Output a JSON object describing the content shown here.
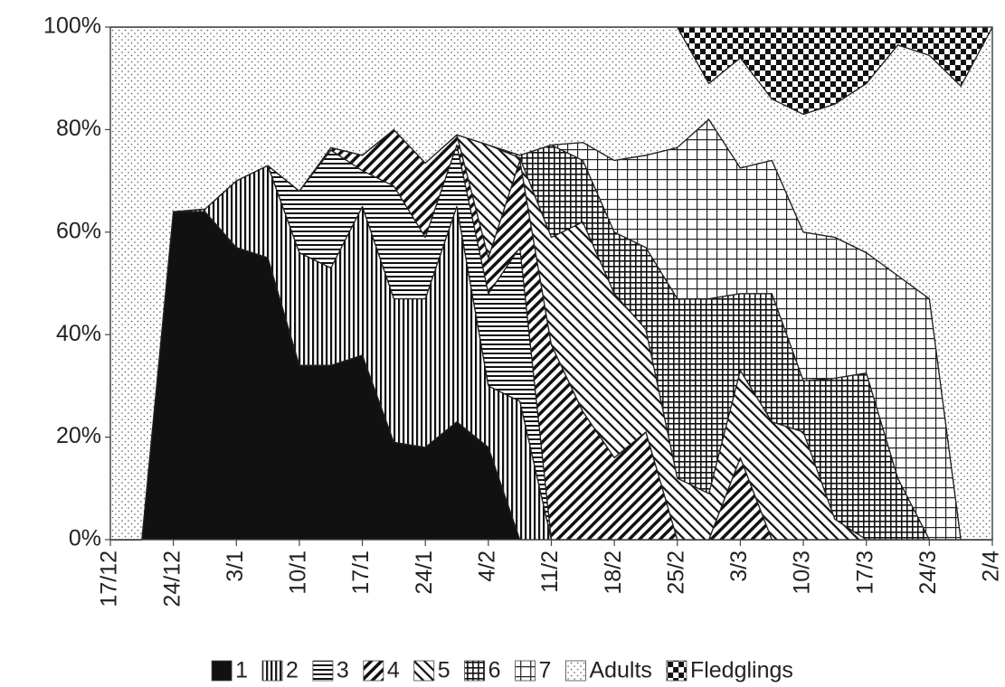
{
  "chart_data": {
    "type": "stacked-area",
    "categories": [
      "17/12",
      null,
      "24/12",
      null,
      "3/1",
      null,
      "10/1",
      null,
      "17/1",
      null,
      "24/1",
      null,
      "4/2",
      null,
      "11/2",
      null,
      "18/2",
      null,
      "25/2",
      null,
      "3/3",
      null,
      "10/3",
      null,
      "17/3",
      null,
      "24/3",
      null,
      "2/4"
    ],
    "ylim": [
      0,
      100
    ],
    "yticks": [
      {
        "value": 0,
        "label": "0%"
      },
      {
        "value": 20,
        "label": "20%"
      },
      {
        "value": 40,
        "label": "40%"
      },
      {
        "value": 60,
        "label": "60%"
      },
      {
        "value": 80,
        "label": "80%"
      },
      {
        "value": 100,
        "label": "100%"
      }
    ],
    "legend": "bottom",
    "series": [
      {
        "name": "1",
        "pattern": "solid",
        "values": [
          0,
          0,
          64,
          64,
          57,
          55,
          34,
          34,
          36,
          19,
          18,
          23,
          18,
          0,
          0,
          0,
          0,
          0,
          0,
          0,
          0,
          0,
          0,
          0,
          0,
          0,
          0,
          0,
          0
        ]
      },
      {
        "name": "2",
        "pattern": "vertical",
        "values": [
          0,
          0,
          0,
          0.5,
          13,
          18,
          22,
          19,
          29,
          28,
          29,
          42,
          12,
          27,
          0,
          0,
          0,
          0,
          0,
          0,
          0,
          0,
          0,
          0,
          0,
          0,
          0,
          0,
          0
        ]
      },
      {
        "name": "3",
        "pattern": "horizontal",
        "values": [
          0,
          0,
          0,
          0,
          0,
          0,
          12,
          23,
          7,
          22,
          12,
          12,
          18,
          30,
          0,
          0,
          0,
          0,
          0,
          0,
          0,
          0,
          0,
          0,
          0,
          0,
          0,
          0,
          0
        ]
      },
      {
        "name": "4",
        "pattern": "diagonal",
        "values": [
          0,
          0,
          0,
          0,
          0,
          0,
          0,
          0.5,
          3,
          11,
          14.5,
          2,
          7,
          17,
          38,
          25,
          16,
          21,
          0,
          0,
          16,
          0,
          0,
          0,
          0,
          0,
          0,
          0,
          0
        ]
      },
      {
        "name": "5",
        "pattern": "antidiagonal",
        "values": [
          0,
          0,
          0,
          0,
          0,
          0,
          0,
          0,
          0,
          0,
          0,
          0,
          22,
          0.5,
          21,
          37,
          32,
          20,
          12,
          9,
          17,
          23,
          21,
          4,
          0,
          0,
          0,
          0,
          0
        ]
      },
      {
        "name": "6",
        "pattern": "fine-grid",
        "values": [
          0,
          0,
          0,
          0,
          0,
          0,
          0,
          0,
          0,
          0,
          0,
          0,
          0,
          0.5,
          18,
          12,
          12,
          16,
          35,
          38,
          15,
          25,
          10,
          27.5,
          32.5,
          12,
          0,
          0,
          0
        ]
      },
      {
        "name": "7",
        "pattern": "grid",
        "values": [
          0,
          0,
          0,
          0,
          0,
          0,
          0,
          0,
          0,
          0,
          0,
          0,
          0,
          0,
          0,
          3.5,
          14,
          18,
          29.5,
          35,
          24.5,
          26,
          29,
          27.5,
          23.5,
          39.5,
          47,
          0,
          0
        ]
      },
      {
        "name": "Adults",
        "pattern": "dots",
        "values": [
          100,
          100,
          36,
          35.5,
          30,
          27,
          32,
          23.5,
          25,
          20,
          26.5,
          21,
          23,
          25,
          23,
          22.5,
          26,
          25,
          23.5,
          7,
          21.5,
          12,
          23,
          26,
          33,
          45,
          47.5,
          88.5,
          100
        ]
      },
      {
        "name": "Fledglings",
        "pattern": "checker",
        "values": [
          0,
          0,
          0,
          0,
          0,
          0,
          0,
          0,
          0,
          0,
          0,
          0,
          0,
          0,
          0,
          0,
          0,
          0,
          0,
          11,
          6,
          14,
          17,
          15,
          11,
          3.5,
          5.5,
          11.5,
          0
        ]
      }
    ]
  }
}
